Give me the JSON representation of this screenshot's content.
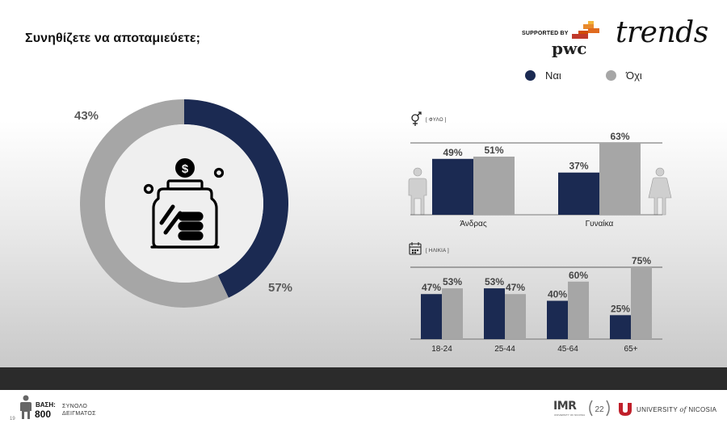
{
  "header": {
    "title": "Συνηθίζετε να αποταμιεύετε;",
    "supported_by": "SUPPORTED BY",
    "pwc": "pwc",
    "trends": "trends"
  },
  "legend": [
    {
      "label": "Ναι",
      "color": "#1b2a52"
    },
    {
      "label": "Όχι",
      "color": "#a6a6a6"
    }
  ],
  "colors": {
    "yes": "#1b2a52",
    "no": "#a6a6a6"
  },
  "icons": {
    "center": "money-jar-icon",
    "gender": "gender-icon",
    "age": "calendar-icon"
  },
  "chart_data": [
    {
      "type": "pie",
      "title": "",
      "labels": [
        "Ναι",
        "Όχι"
      ],
      "values": [
        43,
        57
      ],
      "value_labels": [
        "43%",
        "57%"
      ]
    },
    {
      "type": "bar",
      "title": "[ ΦΥΛΟ ]",
      "categories": [
        "Άνδρας",
        "Γυναίκα"
      ],
      "series": [
        {
          "name": "Ναι",
          "values": [
            49,
            37
          ]
        },
        {
          "name": "Όχι",
          "values": [
            51,
            63
          ]
        }
      ],
      "ylim": [
        0,
        63
      ]
    },
    {
      "type": "bar",
      "title": "[ ΗΛΙΚΙΑ ]",
      "categories": [
        "18-24",
        "25-44",
        "45-64",
        "65+"
      ],
      "series": [
        {
          "name": "Ναι",
          "values": [
            47,
            53,
            40,
            25
          ]
        },
        {
          "name": "Όχι",
          "values": [
            53,
            47,
            60,
            75
          ]
        }
      ],
      "ylim": [
        0,
        75
      ]
    }
  ],
  "footer": {
    "base_label": "ΒΑΣΗ:",
    "base_value": "800",
    "sample_line1": "ΣΥΝΟΛΟ",
    "sample_line2": "ΔΕΙΓΜΑΤΟΣ",
    "page_number": "19",
    "imr": "IMR",
    "imr_sub": "UNIVERSITY OF NICOSIA",
    "anniversary": "22",
    "university_prefix": "UNIVERSITY",
    "university_of": "of",
    "university_suffix": "NICOSIA"
  }
}
